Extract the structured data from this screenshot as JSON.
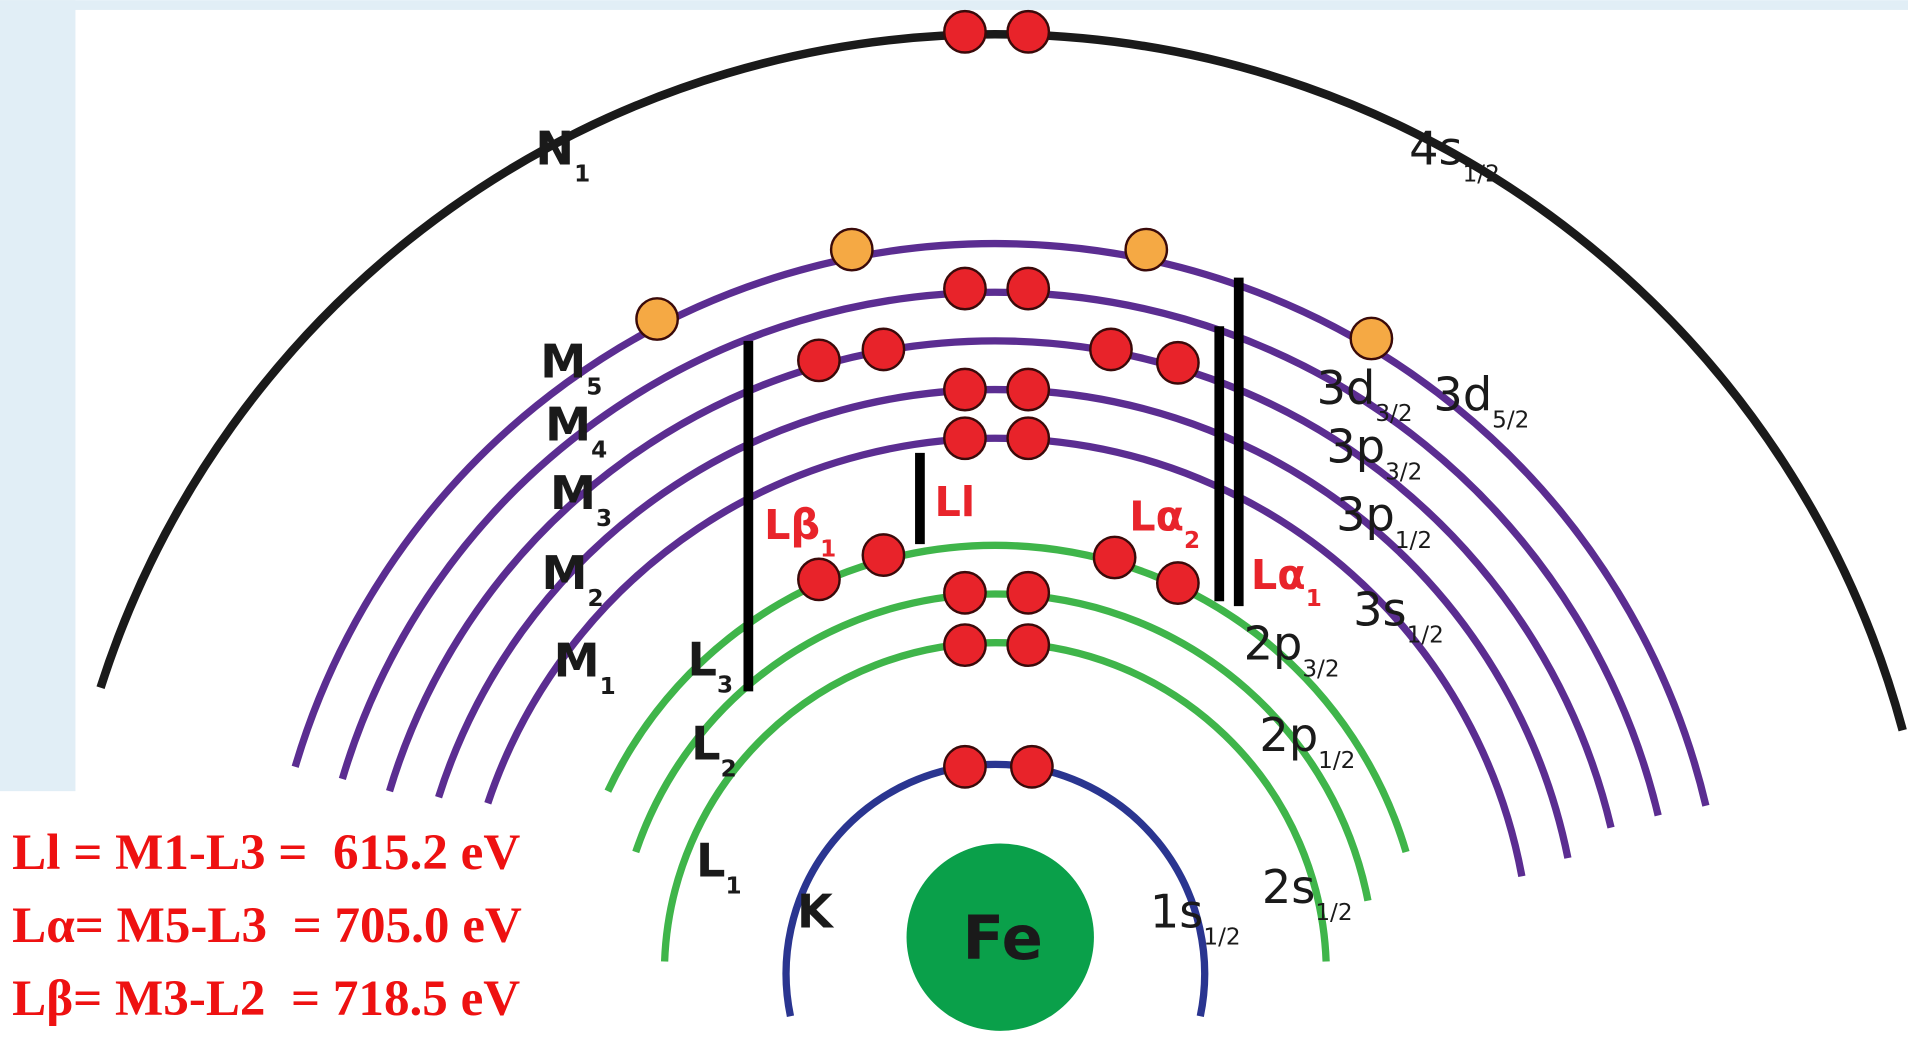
{
  "nucleus": "Fe",
  "shell_labels": [
    {
      "letter": "N",
      "sub": "1"
    },
    {
      "letter": "M",
      "sub": "5"
    },
    {
      "letter": "M",
      "sub": "4"
    },
    {
      "letter": "M",
      "sub": "3"
    },
    {
      "letter": "M",
      "sub": "2"
    },
    {
      "letter": "M",
      "sub": "1"
    },
    {
      "letter": "L",
      "sub": "3"
    },
    {
      "letter": "L",
      "sub": "2"
    },
    {
      "letter": "L",
      "sub": "1"
    },
    {
      "letter": "K"
    }
  ],
  "orbital_labels": [
    {
      "main": "4s",
      "sub": "1/2"
    },
    {
      "main": "3d",
      "sub": "5/2"
    },
    {
      "main": "3d",
      "sub": "3/2"
    },
    {
      "main": "3p",
      "sub": "3/2"
    },
    {
      "main": "3p",
      "sub": "1/2"
    },
    {
      "main": "3s",
      "sub": "1/2"
    },
    {
      "main": "2p",
      "sub": "3/2"
    },
    {
      "main": "2p",
      "sub": "1/2"
    },
    {
      "main": "2s",
      "sub": "1/2"
    },
    {
      "main": "1s",
      "sub": "1/2"
    }
  ],
  "transitions": [
    {
      "main": "Lβ",
      "sub": "1"
    },
    {
      "main": "Ll"
    },
    {
      "main": "Lα",
      "sub": "2"
    },
    {
      "main": "Lα",
      "sub": "1"
    }
  ],
  "equations": [
    "Ll = M1-L3 =  615.2 eV",
    "Lα= M5-L3  = 705.0 eV",
    "Lβ= M3-L2  = 718.5 eV"
  ]
}
